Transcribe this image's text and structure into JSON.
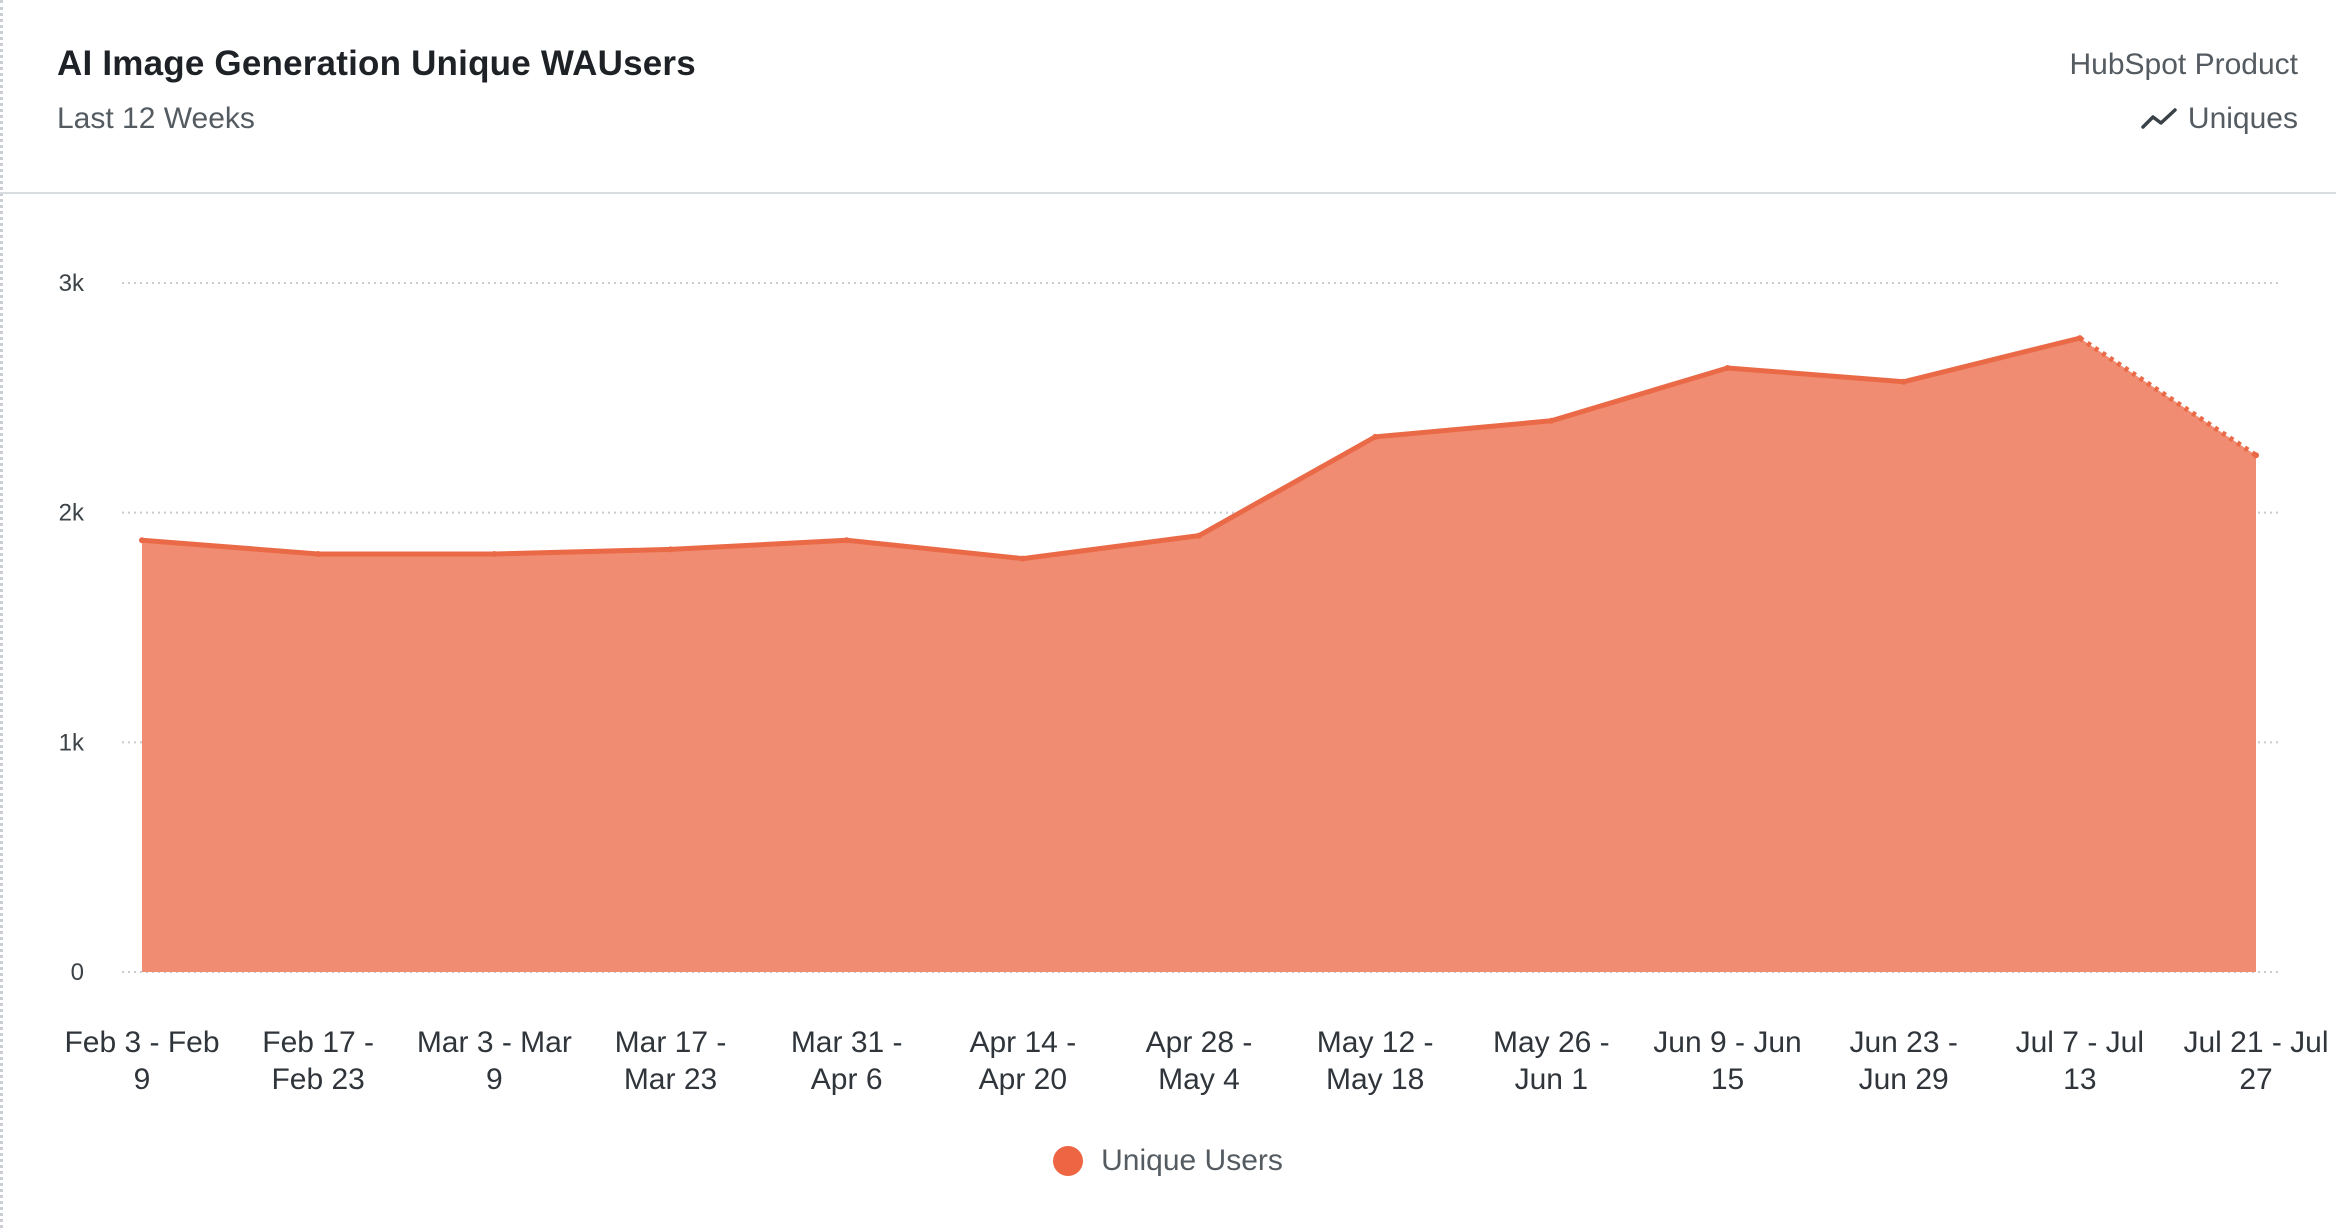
{
  "header": {
    "title": "AI Image Generation Unique WAUsers",
    "subtitle": "Last 12 Weeks",
    "project": "HubSpot Product",
    "metric_label": "Uniques"
  },
  "colors": {
    "series_line": "#ea6a47",
    "series_fill": "#f08c72",
    "legend_dot": "#ee6543",
    "grid": "#c7ccd0"
  },
  "chart_data": {
    "type": "area",
    "title": "AI Image Generation Unique WAUsers",
    "subtitle": "Last 12 Weeks",
    "xlabel": "",
    "ylabel": "",
    "ylim": [
      0,
      3000
    ],
    "yticks": [
      {
        "value": 0,
        "label": "0"
      },
      {
        "value": 1000,
        "label": "1k"
      },
      {
        "value": 2000,
        "label": "2k"
      },
      {
        "value": 3000,
        "label": "3k"
      }
    ],
    "grid": true,
    "legend_position": "bottom-center",
    "categories": [
      [
        "Feb 3 - Feb",
        "9"
      ],
      [
        "Feb 17 -",
        "Feb 23"
      ],
      [
        "Mar 3 - Mar",
        "9"
      ],
      [
        "Mar 17 -",
        "Mar 23"
      ],
      [
        "Mar 31 -",
        "Apr 6"
      ],
      [
        "Apr 14 -",
        "Apr 20"
      ],
      [
        "Apr 28 -",
        "May 4"
      ],
      [
        "May 12 -",
        "May 18"
      ],
      [
        "May 26 -",
        "Jun 1"
      ],
      [
        "Jun 9 - Jun",
        "15"
      ],
      [
        "Jun 23 -",
        "Jun 29"
      ],
      [
        "Jul 7 - Jul",
        "13"
      ],
      [
        "Jul 21 - Jul",
        "27"
      ]
    ],
    "series": [
      {
        "name": "Unique Users",
        "values": [
          1880,
          1820,
          1820,
          1840,
          1880,
          1800,
          1900,
          2330,
          2400,
          2630,
          2570,
          2760,
          2250
        ],
        "incomplete_last_point": true
      }
    ]
  }
}
